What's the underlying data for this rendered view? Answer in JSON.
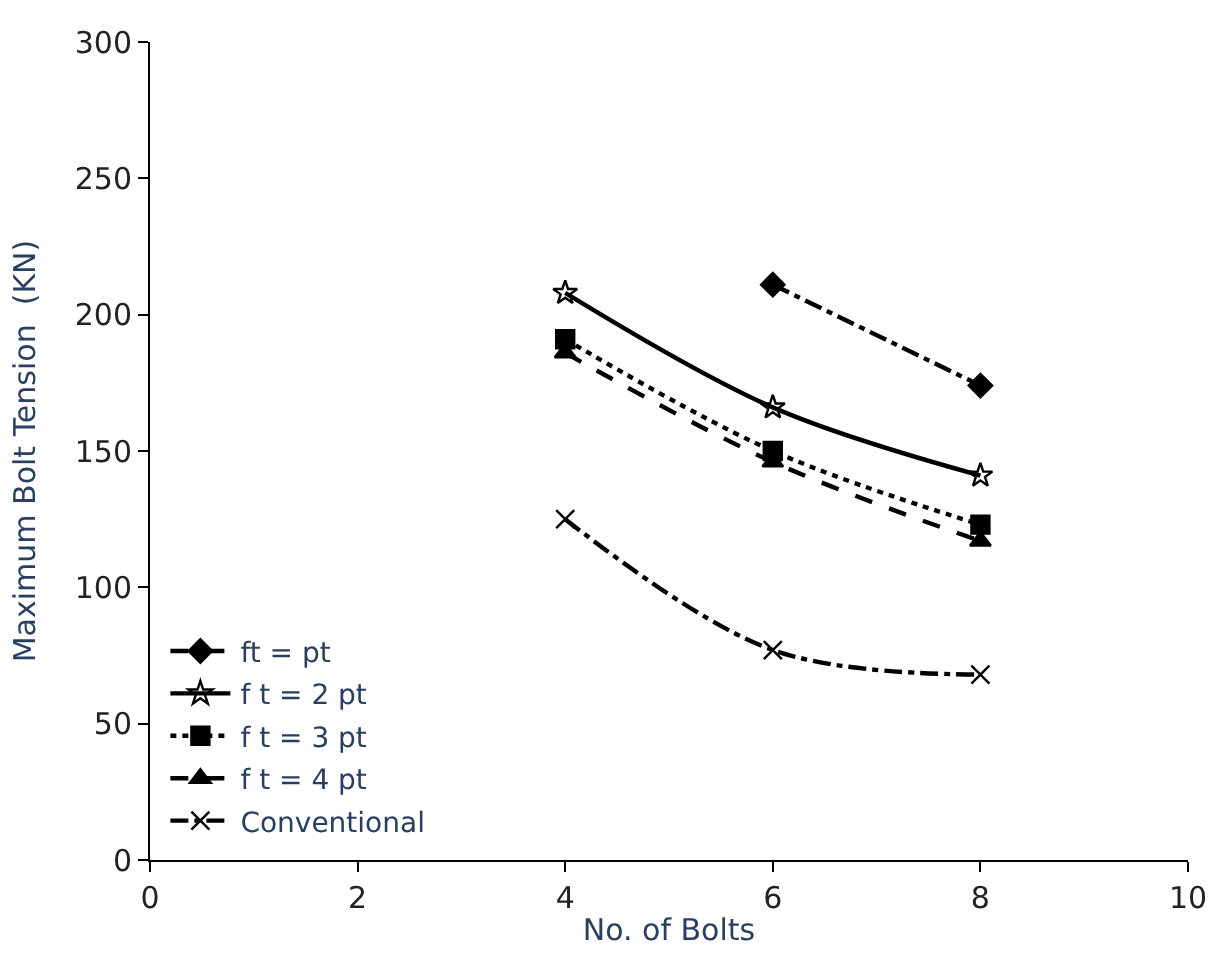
{
  "chart_data": {
    "type": "line",
    "xlabel": "No. of Bolts",
    "ylabel": "Maximum Bolt Tension  (KN)",
    "xlim": [
      0,
      10
    ],
    "xticks": [
      0,
      2,
      4,
      6,
      8,
      10
    ],
    "ylim": [
      0,
      300
    ],
    "yticks": [
      0,
      50,
      100,
      150,
      200,
      250,
      300
    ],
    "legend": "bottom left",
    "series": [
      {
        "name": "ft = pt",
        "color": "#000000",
        "x": [
          6,
          8
        ],
        "values": [
          211,
          174
        ],
        "marker": "diamond",
        "line_style": "dashdot"
      },
      {
        "name": "f t = 2 pt",
        "color": "#000000",
        "x": [
          4,
          6,
          8
        ],
        "values": [
          208,
          166,
          141
        ],
        "marker": "star",
        "line_style": "solid"
      },
      {
        "name": "f t = 3 pt",
        "color": "#000000",
        "x": [
          4,
          6,
          8
        ],
        "values": [
          191,
          150,
          123
        ],
        "marker": "square",
        "line_style": "dotted"
      },
      {
        "name": "f t = 4 pt",
        "color": "#000000",
        "x": [
          4,
          6,
          8
        ],
        "values": [
          186,
          146,
          117
        ],
        "marker": "triangle",
        "line_style": "dashed"
      },
      {
        "name": "Conventional",
        "color": "#000000",
        "x": [
          4,
          6,
          8
        ],
        "values": [
          125,
          77,
          68
        ],
        "marker": "cross",
        "line_style": "dashdot"
      }
    ]
  }
}
